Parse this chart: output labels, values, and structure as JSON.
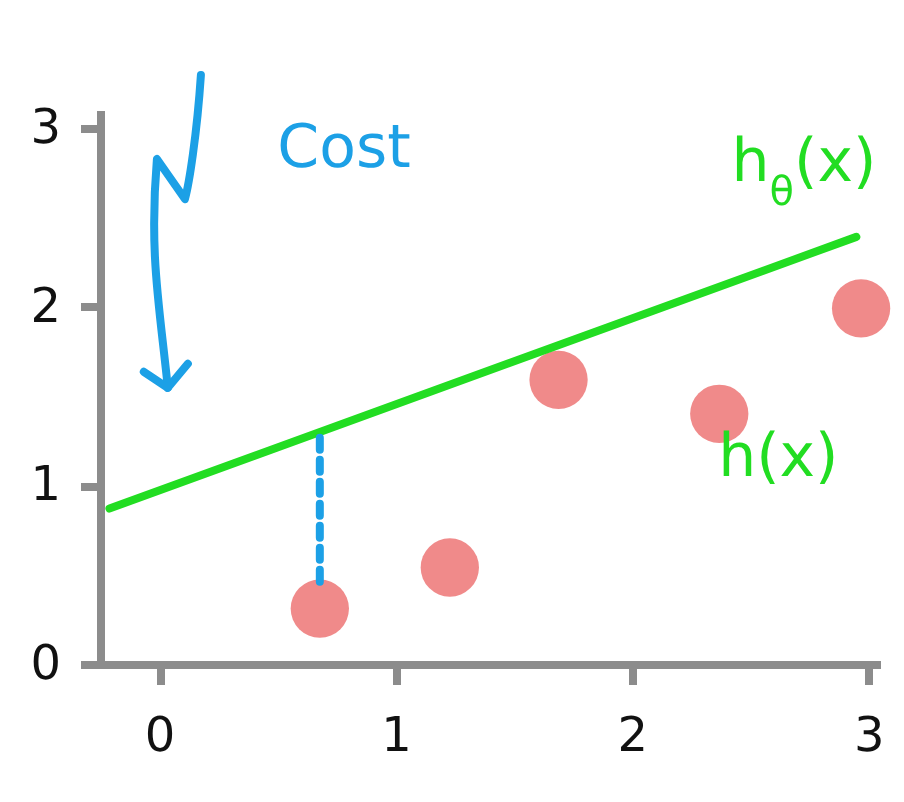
{
  "chart_data": {
    "type": "scatter",
    "xlim": [
      -0.25,
      3.05
    ],
    "ylim": [
      0,
      3.1
    ],
    "xticks": [
      0,
      1,
      2,
      3
    ],
    "yticks": [
      0,
      1,
      2,
      3
    ],
    "marker": "circle",
    "series": [
      {
        "color": "#f08a8a",
        "x": [
          0.68,
          1.23,
          1.69,
          2.37,
          2.97
        ],
        "values": [
          0.31,
          0.54,
          1.59,
          1.4,
          1.99
        ]
      },
      {
        "type": "line",
        "name": "h$_{θ}$(x)",
        "color": "#22dd22",
        "marker": "none",
        "line_style": "solid",
        "x": [
          -0.21,
          2.95
        ],
        "values": [
          0.87,
          2.39
        ]
      },
      {
        "type": "line",
        "color": "#1ca0e6",
        "marker": "none",
        "line_style": "dashed",
        "x": [
          0.68,
          0.68
        ],
        "values": [
          0.46,
          1.29
        ]
      }
    ],
    "annotations": [
      "Cost",
      "h(x)"
    ]
  }
}
